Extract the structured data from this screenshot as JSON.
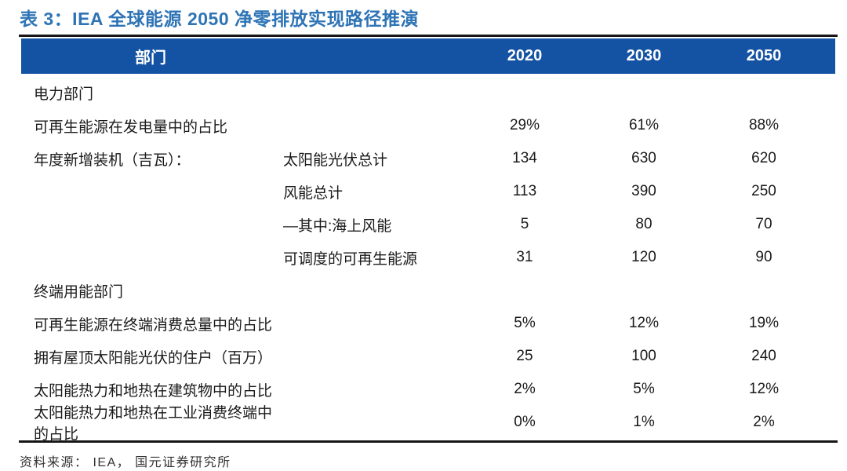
{
  "title": "表 3：IEA 全球能源 2050 净零排放实现路径推演",
  "colors": {
    "title_blue": "#2E74B5",
    "header_bg": "#1452A3",
    "header_text": "#FFFFFF",
    "rule_black": "#161616"
  },
  "table": {
    "header": {
      "label": "部门",
      "years": [
        "2020",
        "2030",
        "2050"
      ]
    },
    "rows": [
      {
        "type": "section",
        "label": "电力部门",
        "sublabel": "",
        "values": [
          "",
          "",
          ""
        ]
      },
      {
        "type": "data",
        "label": "可再生能源在发电量中的占比",
        "sublabel": "",
        "values": [
          "29%",
          "61%",
          "88%"
        ]
      },
      {
        "type": "data",
        "label": "年度新增装机（吉瓦）：",
        "sublabel": "太阳能光伏总计",
        "values": [
          "134",
          "630",
          "620"
        ]
      },
      {
        "type": "data",
        "label": "",
        "sublabel": "风能总计",
        "values": [
          "113",
          "390",
          "250"
        ]
      },
      {
        "type": "data",
        "label": "",
        "sublabel": "—其中:海上风能",
        "values": [
          "5",
          "80",
          "70"
        ]
      },
      {
        "type": "data",
        "label": "",
        "sublabel": "可调度的可再生能源",
        "values": [
          "31",
          "120",
          "90"
        ]
      },
      {
        "type": "section",
        "label": "终端用能部门",
        "sublabel": "",
        "values": [
          "",
          "",
          ""
        ]
      },
      {
        "type": "data",
        "label": "可再生能源在终端消费总量中的占比",
        "sublabel": "",
        "values": [
          "5%",
          "12%",
          "19%"
        ]
      },
      {
        "type": "data",
        "label": "拥有屋顶太阳能光伏的住户（百万）",
        "sublabel": "",
        "values": [
          "25",
          "100",
          "240"
        ]
      },
      {
        "type": "data",
        "label": "太阳能热力和地热在建筑物中的占比",
        "sublabel": "",
        "values": [
          "2%",
          "5%",
          "12%"
        ]
      },
      {
        "type": "data",
        "label": "太阳能热力和地热在工业消费终端中的占比",
        "sublabel": "",
        "values": [
          "0%",
          "1%",
          "2%"
        ]
      }
    ]
  },
  "source": "资料来源： IEA， 国元证券研究所"
}
